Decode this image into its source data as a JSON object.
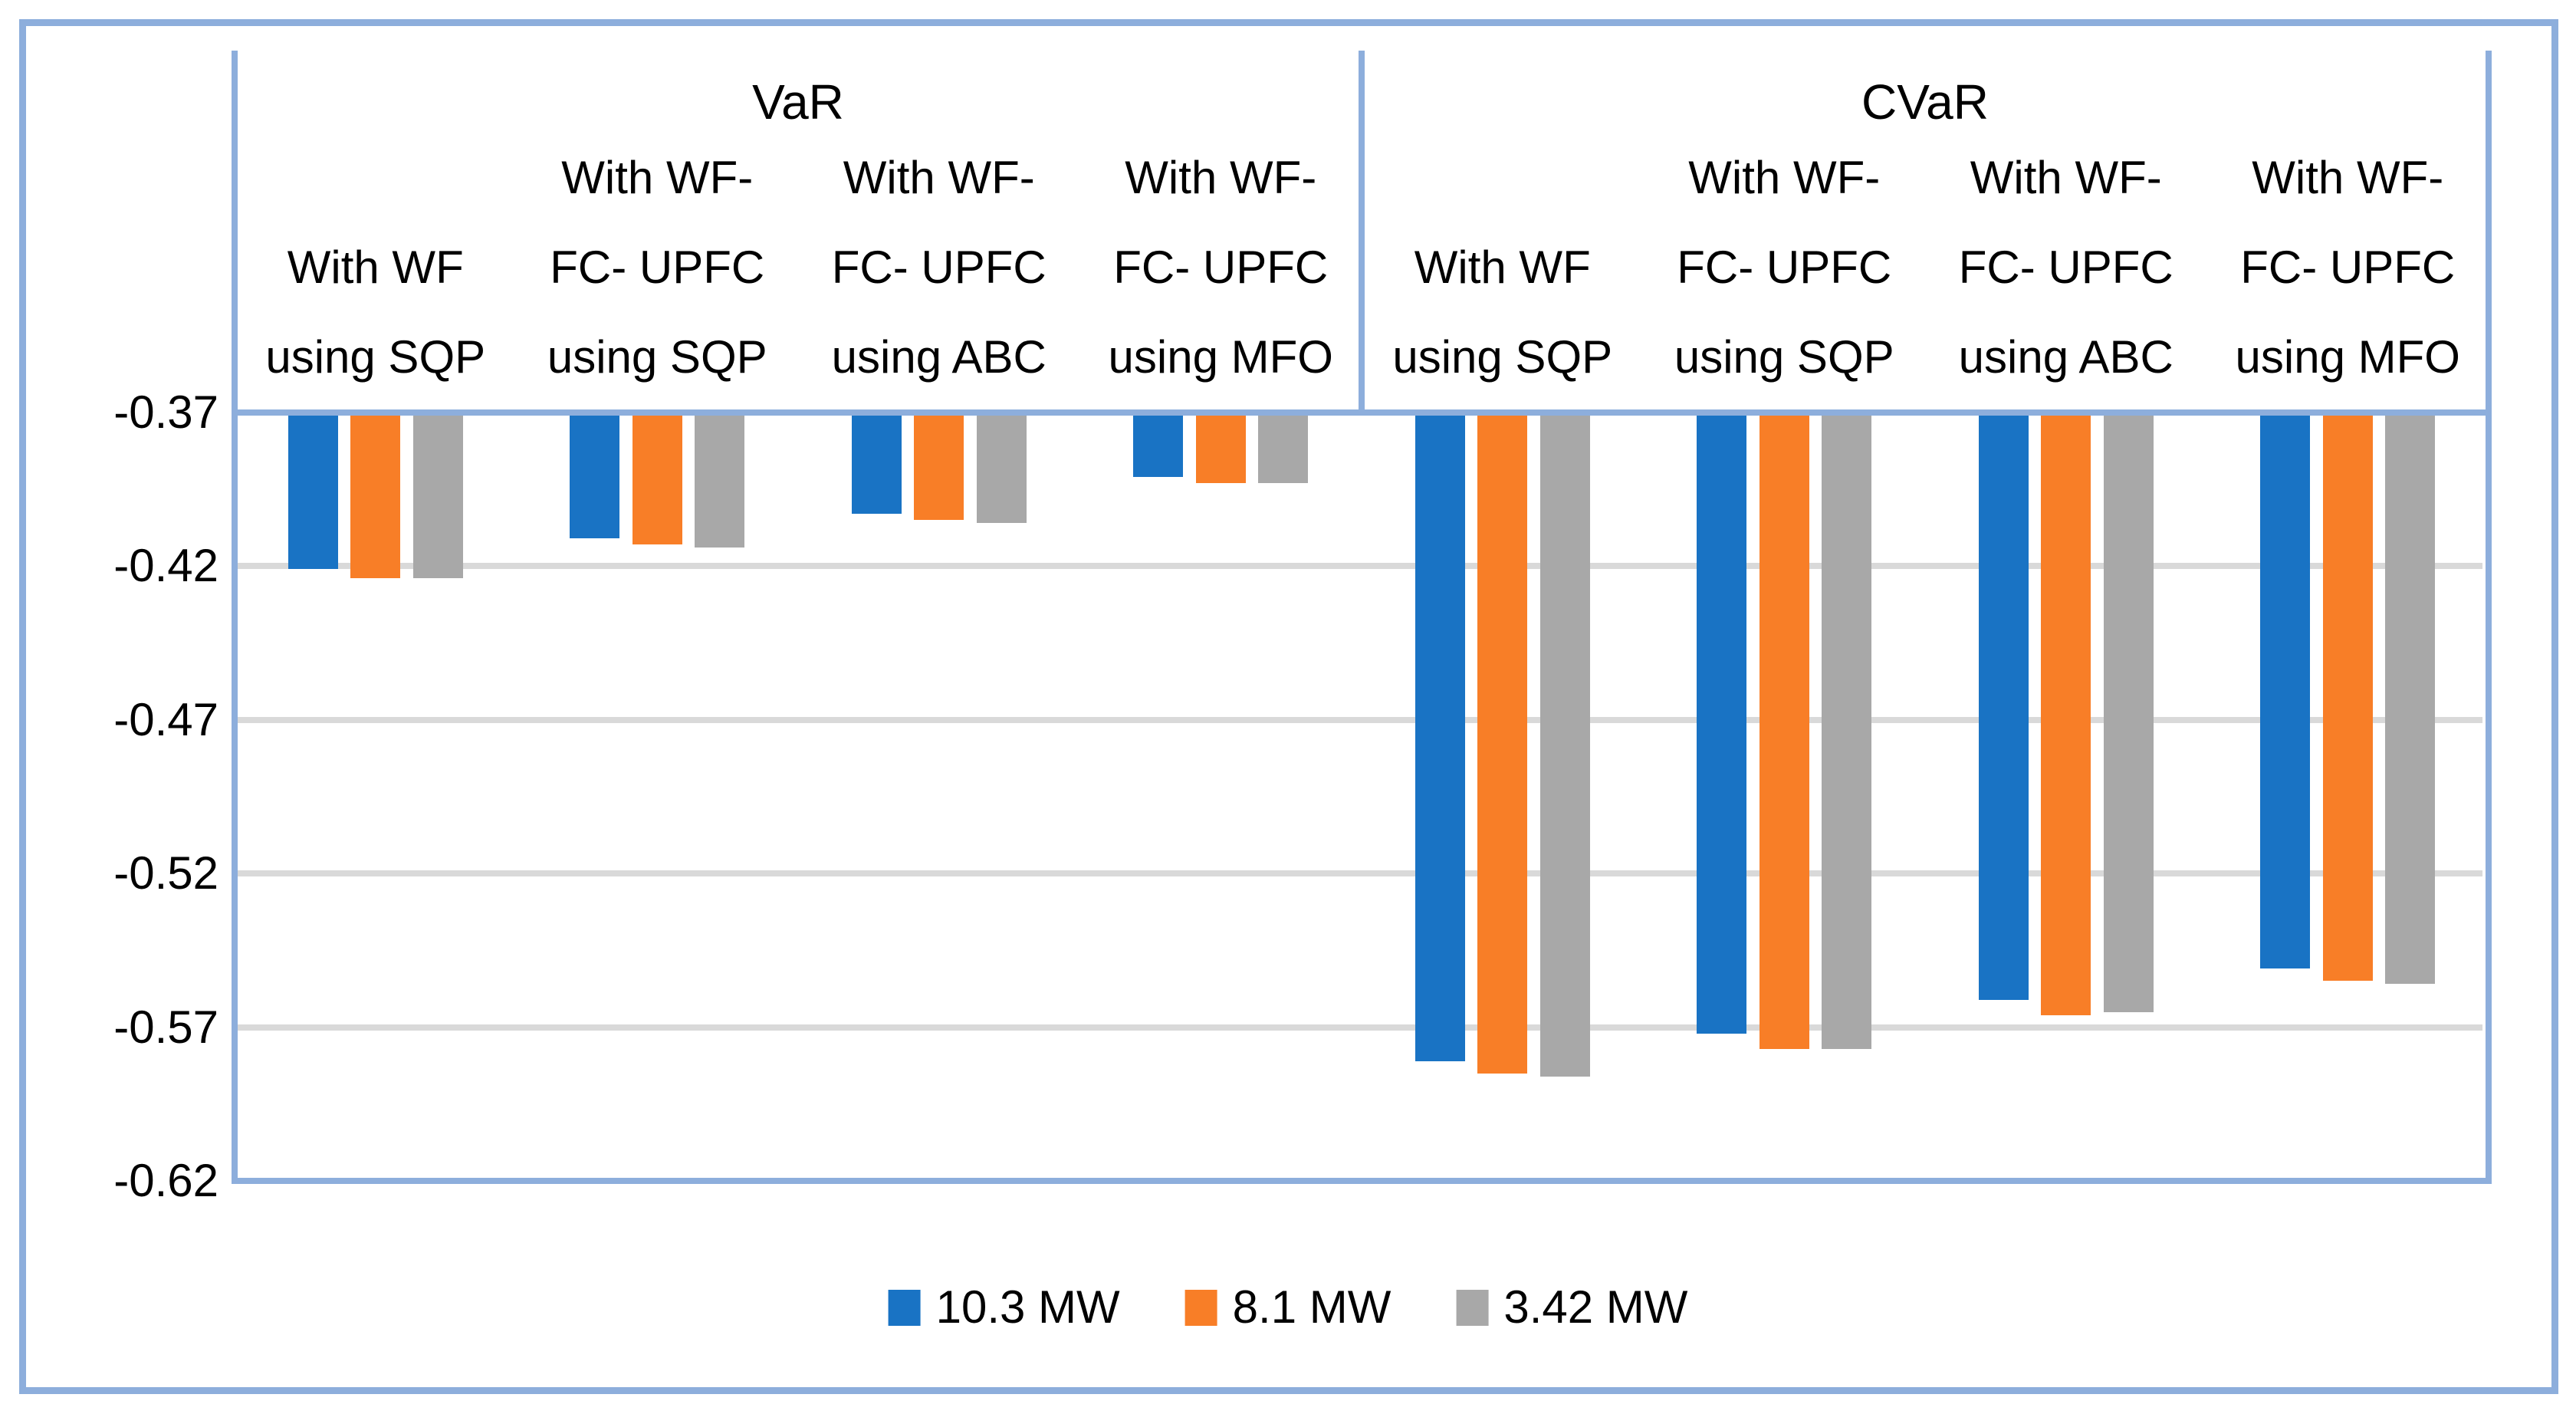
{
  "chart_data": {
    "type": "bar",
    "title": "",
    "orientation": "vertical-hanging",
    "group_labels": [
      "VaR",
      "CVaR"
    ],
    "categories": [
      {
        "group": "VaR",
        "label": "With WF using SQP",
        "lines": [
          "With WF",
          "using SQP"
        ]
      },
      {
        "group": "VaR",
        "label": "With WF-FC- UPFC using SQP",
        "lines": [
          "With WF-",
          "FC- UPFC",
          "using SQP"
        ]
      },
      {
        "group": "VaR",
        "label": "With WF-FC- UPFC using ABC",
        "lines": [
          "With WF-",
          "FC- UPFC",
          "using ABC"
        ]
      },
      {
        "group": "VaR",
        "label": "With WF-FC- UPFC using MFO",
        "lines": [
          "With WF-",
          "FC- UPFC",
          "using MFO"
        ]
      },
      {
        "group": "CVaR",
        "label": "With WF using SQP",
        "lines": [
          "With WF",
          "using SQP"
        ]
      },
      {
        "group": "CVaR",
        "label": "With WF-FC- UPFC using SQP",
        "lines": [
          "With WF-",
          "FC- UPFC",
          "using SQP"
        ]
      },
      {
        "group": "CVaR",
        "label": "With WF-FC- UPFC using ABC",
        "lines": [
          "With WF-",
          "FC- UPFC",
          "using ABC"
        ]
      },
      {
        "group": "CVaR",
        "label": "With WF-FC- UPFC using MFO",
        "lines": [
          "With WF-",
          "FC- UPFC",
          "using MFO"
        ]
      }
    ],
    "series": [
      {
        "name": "10.3 MW",
        "color": "#1973C4",
        "values": [
          -0.421,
          -0.411,
          -0.403,
          -0.391,
          -0.581,
          -0.572,
          -0.561,
          -0.551
        ]
      },
      {
        "name": "8.1 MW",
        "color": "#F87E27",
        "values": [
          -0.424,
          -0.413,
          -0.405,
          -0.393,
          -0.585,
          -0.577,
          -0.566,
          -0.555
        ]
      },
      {
        "name": "3.42 MW",
        "color": "#A8A8A8",
        "values": [
          -0.424,
          -0.414,
          -0.406,
          -0.393,
          -0.586,
          -0.577,
          -0.565,
          -0.556
        ]
      }
    ],
    "value_axis": {
      "min": -0.62,
      "max": -0.37,
      "major_unit": 0.05,
      "baseline": -0.37,
      "tick_labels": [
        "-0.37",
        "-0.42",
        "-0.47",
        "-0.52",
        "-0.57",
        "-0.62"
      ],
      "ticks": [
        -0.37,
        -0.42,
        -0.47,
        -0.52,
        -0.57,
        -0.62
      ]
    },
    "legend": {
      "position": "bottom",
      "entries": [
        "10.3 MW",
        "8.1 MW",
        "3.42 MW"
      ]
    },
    "grid": true
  },
  "colors": {
    "frame_blue": "#8DAEDC",
    "gridline_gray": "#D9D9D9",
    "series_blue": "#1973C4",
    "series_orange": "#F87E27",
    "series_gray": "#A8A8A8",
    "text": "#000000",
    "background": "#FFFFFF"
  }
}
